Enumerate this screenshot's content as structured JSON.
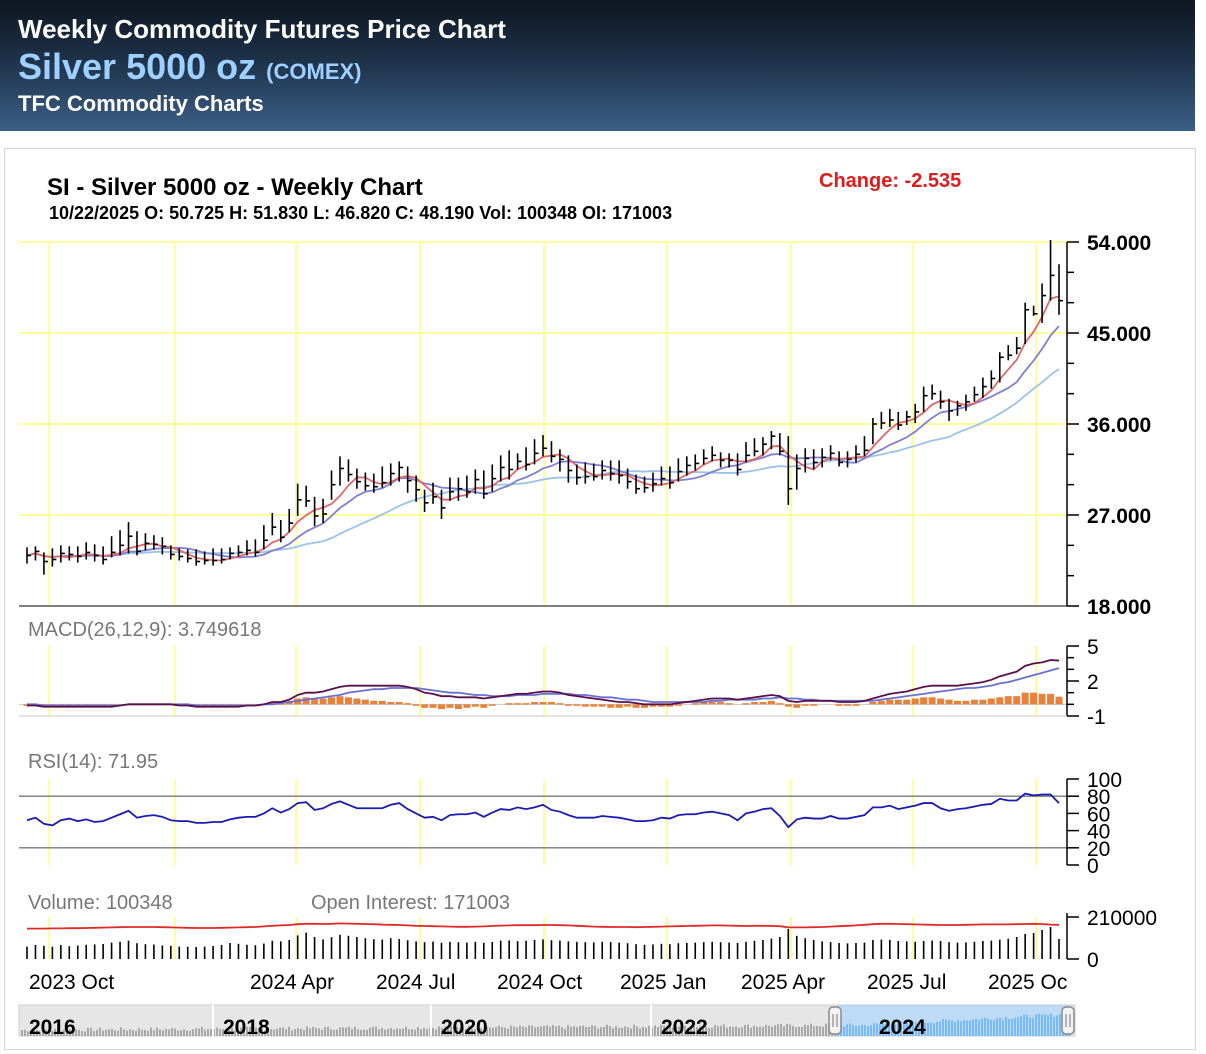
{
  "header": {
    "heading": "Weekly Commodity Futures Price Chart",
    "instrument": "Silver 5000 oz",
    "exchange": "(COMEX)",
    "provider": "TFC Commodity Charts"
  },
  "chart_data": {
    "type": "line",
    "title": "SI - Silver 5000 oz - Weekly Chart",
    "subtitle": "10/22/2025 O: 50.725 H: 51.830 L: 46.820 C: 48.190 Vol: 100348 OI: 171003",
    "change_text": "Change: -2.535",
    "colors": {
      "change": "#e01b1b",
      "grid": "#ffff99",
      "ma_fast": "#e0676a",
      "ma_mid": "#7f7fd6",
      "ma_slow": "#9cc2e6"
    },
    "x_ticks": [
      "2023 Oct",
      "2024 Apr",
      "2024 Jul",
      "2024 Oct",
      "2025 Jan",
      "2025 Apr",
      "2025 Jul",
      "2025 Oc"
    ],
    "price_panel": {
      "ylim": [
        18,
        54
      ],
      "yticks": [
        "54.000",
        "45.000",
        "36.000",
        "27.000",
        "18.000"
      ],
      "closes": [
        23.0,
        23.4,
        22.4,
        22.6,
        23.2,
        23.1,
        22.9,
        23.3,
        23.0,
        22.6,
        23.3,
        24.0,
        24.9,
        23.4,
        24.2,
        24.1,
        23.9,
        23.1,
        22.9,
        22.7,
        22.4,
        22.5,
        22.5,
        22.6,
        23.2,
        23.3,
        23.5,
        23.3,
        24.5,
        25.8,
        24.8,
        26.2,
        28.5,
        28.4,
        26.9,
        27.1,
        30.0,
        31.6,
        31.0,
        30.3,
        29.9,
        29.8,
        30.2,
        31.1,
        31.7,
        30.4,
        29.5,
        28.2,
        28.8,
        27.7,
        29.3,
        29.6,
        29.3,
        30.5,
        29.1,
        30.6,
        31.7,
        31.5,
        32.3,
        32.0,
        33.1,
        33.6,
        32.8,
        32.5,
        31.4,
        30.7,
        30.8,
        30.8,
        31.4,
        31.1,
        30.9,
        30.3,
        29.6,
        29.7,
        30.1,
        30.6,
        30.2,
        31.3,
        31.9,
        32.1,
        32.6,
        32.9,
        32.4,
        32.4,
        31.5,
        32.9,
        33.3,
        34.0,
        34.8,
        33.3,
        29.6,
        31.6,
        32.6,
        32.2,
        32.7,
        33.1,
        32.2,
        32.5,
        33.0,
        33.4,
        36.0,
        36.1,
        36.4,
        35.9,
        36.7,
        37.2,
        38.8,
        39.0,
        38.2,
        37.3,
        37.8,
        38.2,
        38.9,
        39.7,
        40.5,
        42.6,
        42.8,
        43.5,
        47.3,
        46.9,
        48.7,
        50.7,
        48.2
      ],
      "highs": [
        23.8,
        23.9,
        23.3,
        23.7,
        24.0,
        23.9,
        23.9,
        24.3,
        24.1,
        23.9,
        24.9,
        25.5,
        26.3,
        25.4,
        25.2,
        25.0,
        24.8,
        24.0,
        23.7,
        23.6,
        23.6,
        23.4,
        23.7,
        23.7,
        23.8,
        24.0,
        24.5,
        24.6,
        26.0,
        27.2,
        26.5,
        27.6,
        30.1,
        29.9,
        28.8,
        28.6,
        31.4,
        32.8,
        32.5,
        31.6,
        31.2,
        31.1,
        31.8,
        32.1,
        32.3,
        31.8,
        30.9,
        29.5,
        30.2,
        29.5,
        30.7,
        30.7,
        30.9,
        31.5,
        31.4,
        32.0,
        32.9,
        33.4,
        33.1,
        33.7,
        34.5,
        34.9,
        34.3,
        33.5,
        32.9,
        32.0,
        32.2,
        32.1,
        32.4,
        32.4,
        32.4,
        31.6,
        31.0,
        30.8,
        31.2,
        31.8,
        31.8,
        32.6,
        32.8,
        33.0,
        33.5,
        33.8,
        33.2,
        33.1,
        33.1,
        34.2,
        34.6,
        34.7,
        35.3,
        35.1,
        34.8,
        33.0,
        33.6,
        33.5,
        33.6,
        33.9,
        33.3,
        33.3,
        33.9,
        34.8,
        36.6,
        37.2,
        37.5,
        37.2,
        37.3,
        38.0,
        39.7,
        39.9,
        39.3,
        38.5,
        38.3,
        38.9,
        39.7,
        40.6,
        41.3,
        43.1,
        43.8,
        44.6,
        48.0,
        47.7,
        49.9,
        54.2,
        51.8
      ],
      "lows": [
        22.2,
        22.5,
        21.1,
        21.9,
        22.3,
        22.5,
        22.3,
        22.6,
        22.4,
        22.1,
        22.8,
        23.0,
        23.2,
        23.0,
        23.5,
        23.6,
        23.1,
        22.6,
        22.5,
        22.3,
        22.0,
        22.1,
        22.0,
        22.2,
        22.6,
        22.9,
        23.0,
        22.9,
        23.6,
        25.0,
        24.3,
        25.3,
        26.9,
        27.8,
        25.9,
        26.2,
        28.5,
        29.9,
        30.3,
        29.6,
        29.4,
        29.2,
        29.7,
        29.9,
        30.3,
        29.2,
        28.3,
        27.3,
        28.1,
        26.6,
        28.4,
        28.4,
        28.7,
        29.1,
        28.6,
        29.3,
        30.3,
        30.5,
        31.5,
        31.4,
        32.0,
        32.8,
        32.2,
        31.3,
        30.2,
        30.0,
        30.1,
        30.4,
        30.5,
        30.4,
        30.1,
        29.6,
        29.1,
        29.2,
        29.3,
        29.9,
        29.6,
        30.3,
        30.9,
        31.4,
        32.0,
        32.3,
        31.7,
        31.7,
        30.9,
        32.2,
        32.8,
        32.9,
        33.5,
        32.9,
        28.0,
        29.5,
        31.2,
        31.5,
        31.7,
        32.4,
        31.8,
        31.7,
        32.2,
        32.8,
        34.0,
        35.5,
        35.7,
        35.4,
        35.9,
        36.1,
        37.2,
        38.4,
        37.5,
        36.3,
        36.8,
        37.3,
        38.2,
        38.6,
        39.5,
        40.1,
        42.3,
        42.9,
        43.9,
        46.7,
        46.0,
        48.2,
        46.8
      ]
    },
    "macd_panel": {
      "label": "MACD(26,12,9): 3.749618",
      "ylim": [
        -1,
        5
      ],
      "yticks": [
        "5",
        "2",
        "-1"
      ],
      "macd": [
        -0.1,
        -0.1,
        -0.2,
        -0.2,
        -0.2,
        -0.2,
        -0.2,
        -0.2,
        -0.2,
        -0.2,
        -0.2,
        -0.1,
        0.0,
        0.0,
        0.0,
        0.0,
        0.0,
        0.0,
        -0.1,
        -0.1,
        -0.2,
        -0.2,
        -0.2,
        -0.2,
        -0.2,
        -0.2,
        -0.1,
        -0.1,
        0.0,
        0.2,
        0.2,
        0.4,
        0.8,
        1.0,
        1.0,
        1.1,
        1.3,
        1.5,
        1.6,
        1.6,
        1.6,
        1.6,
        1.6,
        1.6,
        1.6,
        1.5,
        1.3,
        1.0,
        0.9,
        0.7,
        0.7,
        0.6,
        0.6,
        0.6,
        0.5,
        0.6,
        0.7,
        0.8,
        0.9,
        0.9,
        1.0,
        1.1,
        1.1,
        1.0,
        0.8,
        0.7,
        0.6,
        0.5,
        0.4,
        0.3,
        0.2,
        0.2,
        0.1,
        0.0,
        0.0,
        0.0,
        0.0,
        0.1,
        0.2,
        0.3,
        0.4,
        0.5,
        0.5,
        0.5,
        0.4,
        0.5,
        0.6,
        0.7,
        0.8,
        0.7,
        0.3,
        0.2,
        0.3,
        0.3,
        0.3,
        0.3,
        0.2,
        0.2,
        0.2,
        0.3,
        0.5,
        0.7,
        0.9,
        1.0,
        1.1,
        1.3,
        1.5,
        1.6,
        1.6,
        1.6,
        1.6,
        1.7,
        1.8,
        1.9,
        2.1,
        2.4,
        2.6,
        2.8,
        3.3,
        3.5,
        3.6,
        3.8,
        3.75
      ],
      "signal": [
        0.0,
        0.0,
        -0.1,
        -0.1,
        -0.1,
        -0.1,
        -0.1,
        -0.1,
        -0.1,
        -0.1,
        -0.1,
        -0.1,
        0.0,
        0.0,
        0.0,
        0.0,
        0.0,
        0.0,
        0.0,
        0.0,
        -0.1,
        -0.1,
        -0.1,
        -0.1,
        -0.1,
        -0.1,
        -0.1,
        -0.1,
        0.0,
        0.0,
        0.1,
        0.2,
        0.3,
        0.4,
        0.5,
        0.6,
        0.7,
        0.8,
        1.0,
        1.1,
        1.2,
        1.3,
        1.3,
        1.4,
        1.4,
        1.4,
        1.4,
        1.3,
        1.2,
        1.1,
        1.0,
        1.0,
        0.9,
        0.8,
        0.8,
        0.7,
        0.7,
        0.7,
        0.8,
        0.8,
        0.8,
        0.9,
        0.9,
        0.9,
        0.9,
        0.8,
        0.8,
        0.7,
        0.6,
        0.6,
        0.5,
        0.4,
        0.4,
        0.3,
        0.2,
        0.2,
        0.2,
        0.2,
        0.2,
        0.2,
        0.2,
        0.3,
        0.3,
        0.4,
        0.4,
        0.4,
        0.4,
        0.5,
        0.5,
        0.6,
        0.5,
        0.5,
        0.4,
        0.4,
        0.3,
        0.3,
        0.3,
        0.3,
        0.3,
        0.3,
        0.3,
        0.4,
        0.5,
        0.6,
        0.7,
        0.8,
        0.9,
        1.0,
        1.1,
        1.2,
        1.3,
        1.4,
        1.4,
        1.5,
        1.6,
        1.8,
        1.9,
        2.1,
        2.3,
        2.5,
        2.7,
        2.9,
        3.1
      ]
    },
    "rsi_panel": {
      "label": "RSI(14): 71.95",
      "ylim": [
        0,
        100
      ],
      "yticks": [
        "100",
        "80",
        "60",
        "40",
        "20",
        "0"
      ],
      "overbought": 80,
      "oversold": 20,
      "values": [
        52,
        55,
        48,
        46,
        52,
        54,
        51,
        53,
        50,
        51,
        55,
        59,
        63,
        55,
        57,
        58,
        56,
        52,
        51,
        51,
        49,
        49,
        50,
        50,
        53,
        55,
        56,
        56,
        60,
        66,
        61,
        65,
        72,
        73,
        64,
        66,
        71,
        74,
        70,
        66,
        66,
        66,
        66,
        70,
        72,
        65,
        60,
        55,
        56,
        52,
        58,
        59,
        59,
        61,
        56,
        61,
        65,
        64,
        67,
        65,
        67,
        70,
        64,
        62,
        58,
        55,
        55,
        55,
        57,
        56,
        55,
        53,
        51,
        51,
        52,
        55,
        54,
        58,
        59,
        59,
        61,
        62,
        60,
        58,
        52,
        60,
        62,
        65,
        66,
        57,
        44,
        53,
        55,
        54,
        54,
        57,
        54,
        54,
        56,
        58,
        67,
        67,
        69,
        65,
        67,
        69,
        72,
        72,
        66,
        63,
        65,
        66,
        68,
        70,
        71,
        77,
        75,
        75,
        83,
        81,
        82,
        82,
        72
      ]
    },
    "volume_panel": {
      "volume_label": "Volume: 100348",
      "oi_label": "Open Interest: 171003",
      "ylim": [
        0,
        210000
      ],
      "yticks": [
        "210000",
        "0"
      ],
      "volume": [
        62000,
        70000,
        66000,
        61000,
        70000,
        64000,
        67000,
        71000,
        73000,
        75000,
        82000,
        86000,
        92000,
        79000,
        74000,
        72000,
        68000,
        66000,
        62000,
        61000,
        60000,
        62000,
        65000,
        70000,
        80000,
        76000,
        71000,
        69000,
        77000,
        91000,
        88000,
        95000,
        118000,
        132000,
        110000,
        98000,
        109000,
        121000,
        116000,
        110000,
        104000,
        99000,
        97000,
        104000,
        100000,
        94000,
        88000,
        84000,
        87000,
        81000,
        86000,
        84000,
        82000,
        86000,
        81000,
        85000,
        92000,
        93000,
        89000,
        91000,
        95000,
        98000,
        94000,
        92000,
        88000,
        86000,
        84000,
        83000,
        86000,
        85000,
        82000,
        79000,
        74000,
        71000,
        73000,
        76000,
        74000,
        79000,
        80000,
        82000,
        84000,
        86000,
        84000,
        82000,
        80000,
        86000,
        91000,
        95000,
        102000,
        110000,
        150000,
        116000,
        104000,
        95000,
        88000,
        85000,
        80000,
        78000,
        80000,
        82000,
        95000,
        97000,
        96000,
        90000,
        88000,
        86000,
        90000,
        92000,
        90000,
        84000,
        82000,
        83000,
        86000,
        90000,
        92000,
        97000,
        101000,
        110000,
        125000,
        130000,
        145000,
        160000,
        100348
      ],
      "open_interest": [
        152000,
        152000,
        152000,
        153000,
        153000,
        154000,
        154000,
        155000,
        156000,
        157000,
        158000,
        159000,
        160000,
        160000,
        160000,
        160000,
        159000,
        158000,
        157000,
        156000,
        155000,
        155000,
        155000,
        156000,
        157000,
        158000,
        159000,
        160000,
        163000,
        166000,
        168000,
        170000,
        174000,
        176000,
        176000,
        175000,
        176000,
        178000,
        177000,
        176000,
        175000,
        174000,
        172000,
        171000,
        170000,
        168000,
        166000,
        165000,
        164000,
        163000,
        162000,
        161000,
        161000,
        162000,
        163000,
        165000,
        167000,
        168000,
        169000,
        169000,
        169000,
        170000,
        170000,
        169000,
        168000,
        166000,
        164000,
        162000,
        161000,
        160000,
        160000,
        160000,
        159000,
        160000,
        161000,
        162000,
        163000,
        164000,
        165000,
        166000,
        167000,
        168000,
        168000,
        167000,
        166000,
        165000,
        166000,
        166000,
        165000,
        164000,
        158000,
        158000,
        158000,
        159000,
        160000,
        162000,
        164000,
        166000,
        168000,
        171000,
        174000,
        176000,
        176000,
        175000,
        174000,
        173000,
        172000,
        171000,
        170000,
        170000,
        170000,
        171000,
        172000,
        173000,
        173000,
        173000,
        173000,
        174000,
        175000,
        176000,
        175000,
        172000,
        171003
      ]
    },
    "navigator": {
      "year_labels": [
        "2016",
        "2018",
        "2020",
        "2022",
        "2024"
      ]
    }
  }
}
